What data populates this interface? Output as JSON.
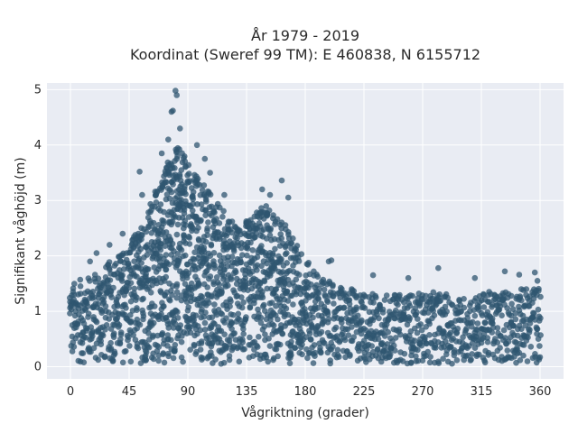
{
  "chart_data": {
    "type": "scatter",
    "title": [
      "År 1979 - 2019",
      "Koordinat (Sweref 99 TM): E 460838, N 6155712"
    ],
    "xlabel": "Vågriktning (grader)",
    "ylabel": "Signifikant våghöjd (m)",
    "xlim": [
      -18,
      378
    ],
    "ylim": [
      -0.22,
      5.12
    ],
    "xticks": [
      0,
      45,
      90,
      135,
      180,
      225,
      270,
      315,
      360
    ],
    "yticks": [
      0,
      1,
      2,
      3,
      4,
      5
    ],
    "grid": true,
    "legend": "none",
    "colors": {
      "marker": "#2f5570",
      "plot_bg": "#e9ecf3",
      "grid": "#ffffff"
    },
    "envelope": {
      "x": [
        0,
        20,
        40,
        55,
        65,
        75,
        82,
        90,
        100,
        115,
        130,
        145,
        155,
        165,
        175,
        185,
        200,
        225,
        250,
        280,
        300,
        320,
        340,
        360
      ],
      "y": [
        1.5,
        1.7,
        2.1,
        2.6,
        3.2,
        3.8,
        4.0,
        3.7,
        3.4,
        2.9,
        2.5,
        2.9,
        2.8,
        2.6,
        2.2,
        1.8,
        1.5,
        1.35,
        1.3,
        1.35,
        1.25,
        1.35,
        1.4,
        1.45
      ]
    },
    "outliers": {
      "x": [
        80.5,
        81.5,
        77.5,
        78.5,
        84,
        70,
        75,
        97,
        103,
        107,
        118,
        147,
        153,
        162,
        167,
        150,
        198,
        200,
        282,
        333,
        344,
        356,
        358,
        53,
        55,
        40,
        30,
        20,
        15,
        232,
        259,
        310
      ],
      "y": [
        4.98,
        4.9,
        4.6,
        4.62,
        4.3,
        3.85,
        4.1,
        4.0,
        3.75,
        3.5,
        3.1,
        3.2,
        3.1,
        3.36,
        3.05,
        2.9,
        1.9,
        1.92,
        1.78,
        1.72,
        1.66,
        1.7,
        1.55,
        3.52,
        3.1,
        2.4,
        2.2,
        2.05,
        1.9,
        1.65,
        1.6,
        1.6
      ]
    }
  }
}
